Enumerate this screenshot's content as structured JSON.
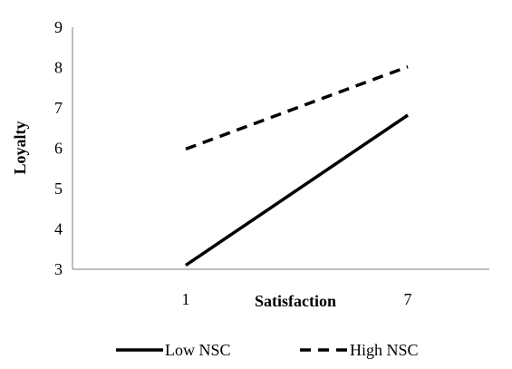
{
  "chart_data": {
    "type": "line",
    "title": "",
    "xlabel": "Satisfaction",
    "ylabel": "Loyalty",
    "categories": [
      "1",
      "7"
    ],
    "ylim": [
      3,
      9
    ],
    "yticks": [
      "3",
      "4",
      "5",
      "6",
      "7",
      "8",
      "9"
    ],
    "grid": false,
    "legend_position": "bottom",
    "series": [
      {
        "name": "Low NSC",
        "values": [
          3.1,
          6.82
        ],
        "line_style": "solid",
        "color": "#000000"
      },
      {
        "name": "High NSC",
        "values": [
          5.98,
          8.02
        ],
        "line_style": "dashed",
        "color": "#000000"
      }
    ]
  }
}
